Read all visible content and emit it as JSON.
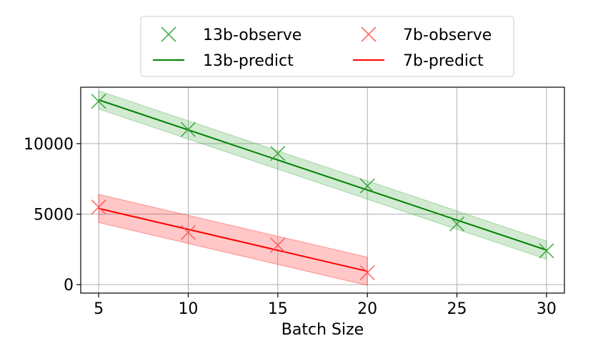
{
  "chart_data": {
    "type": "line",
    "title": "",
    "xlabel": "Batch Size",
    "ylabel": "",
    "xlim": [
      4,
      31
    ],
    "ylim": [
      -600,
      14000
    ],
    "xticks": [
      5,
      10,
      15,
      20,
      25,
      30
    ],
    "yticks": [
      0,
      5000,
      10000
    ],
    "grid": true,
    "legend_position": "top-center",
    "series": [
      {
        "name": "13b-observe",
        "kind": "observed",
        "color": "#2ca02c",
        "x": [
          5,
          10,
          15,
          20,
          25,
          30
        ],
        "y": [
          13000,
          11000,
          9300,
          7000,
          4300,
          2400
        ]
      },
      {
        "name": "7b-observe",
        "kind": "observed",
        "color": "#ff5050",
        "x": [
          5,
          10,
          15,
          20
        ],
        "y": [
          5500,
          3700,
          2800,
          850
        ]
      },
      {
        "name": "13b-predict",
        "kind": "predicted",
        "color": "#008000",
        "band_color": "#2ca02c",
        "x": [
          5,
          30
        ],
        "y": [
          13100,
          2450
        ],
        "band_halfwidth": 650
      },
      {
        "name": "7b-predict",
        "kind": "predicted",
        "color": "#ff0000",
        "band_color": "#ff0000",
        "x": [
          5,
          20
        ],
        "y": [
          5400,
          950
        ],
        "band_halfwidth": 1000
      }
    ],
    "legend": [
      {
        "label": "13b-observe",
        "kind": "marker",
        "color": "#2ca02c"
      },
      {
        "label": "7b-observe",
        "kind": "marker",
        "color": "#ff5050"
      },
      {
        "label": "13b-predict",
        "kind": "line",
        "color": "#008000"
      },
      {
        "label": "7b-predict",
        "kind": "line",
        "color": "#ff0000"
      }
    ]
  }
}
